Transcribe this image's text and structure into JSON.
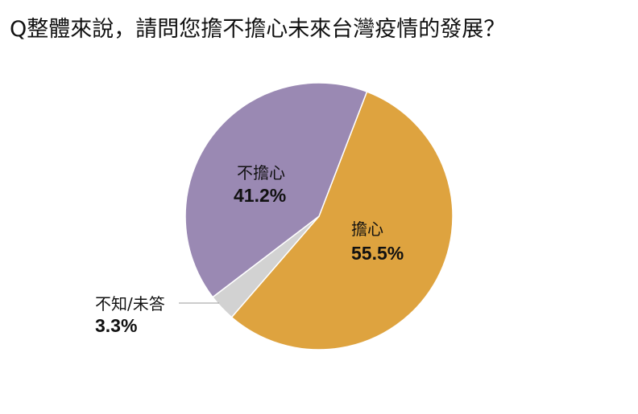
{
  "chart_data": {
    "type": "pie",
    "title": "Q整體來說，請問您擔不擔心未來台灣疫情的發展？",
    "slices": [
      {
        "label": "擔心",
        "value": 55.5,
        "display": "55.5%",
        "color": "#DEA33F"
      },
      {
        "label": "不知/未答",
        "value": 3.3,
        "display": "3.3%",
        "color": "#D2D2D2"
      },
      {
        "label": "不擔心",
        "value": 41.2,
        "display": "41.2%",
        "color": "#9A89B3"
      }
    ],
    "legend": "none"
  }
}
